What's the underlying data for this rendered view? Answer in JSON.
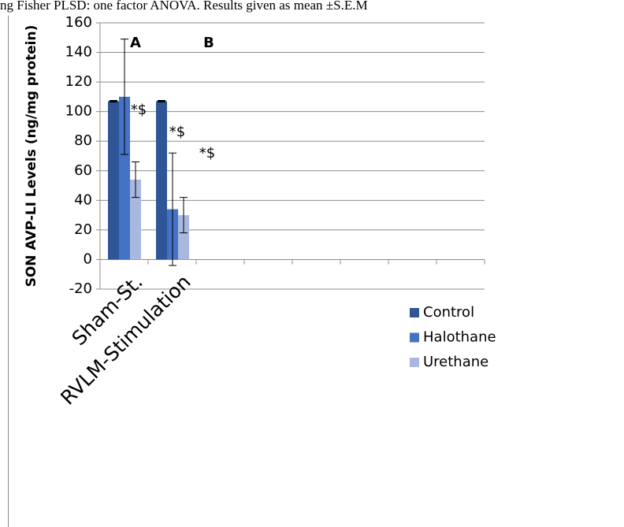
{
  "header": "ng Fisher PLSD: one factor ANOVA. Results given as mean ±S.E.M",
  "chart_data": {
    "type": "bar",
    "y_label": "SON AVP-LI Levels (ng/mg protein)",
    "categories": [
      "Sham-St.",
      "RVLM-Stimulation",
      null,
      null,
      null,
      null,
      null,
      null
    ],
    "series": [
      {
        "name": "Control",
        "color": "#2f5597",
        "values": [
          107,
          107,
          null,
          null,
          null,
          null,
          null,
          null
        ],
        "errors": [
          0,
          0,
          null,
          null,
          null,
          null,
          null,
          null
        ]
      },
      {
        "name": "Halothane",
        "color": "#4472c4",
        "values": [
          110,
          34,
          null,
          null,
          null,
          null,
          null,
          null
        ],
        "errors": [
          39,
          38,
          null,
          null,
          null,
          null,
          null,
          null
        ]
      },
      {
        "name": "Urethane",
        "color": "#a9b8de",
        "values": [
          54,
          30,
          null,
          null,
          null,
          null,
          null,
          null
        ],
        "errors": [
          12,
          12,
          null,
          null,
          null,
          null,
          null,
          null
        ]
      }
    ],
    "ylim": [
      -20,
      160
    ],
    "yticks": [
      -20,
      0,
      20,
      40,
      60,
      80,
      100,
      120,
      140,
      160
    ],
    "grid": true,
    "annotations": [
      "A",
      "B",
      "*$",
      "*$",
      "*$"
    ],
    "legend": "right"
  }
}
